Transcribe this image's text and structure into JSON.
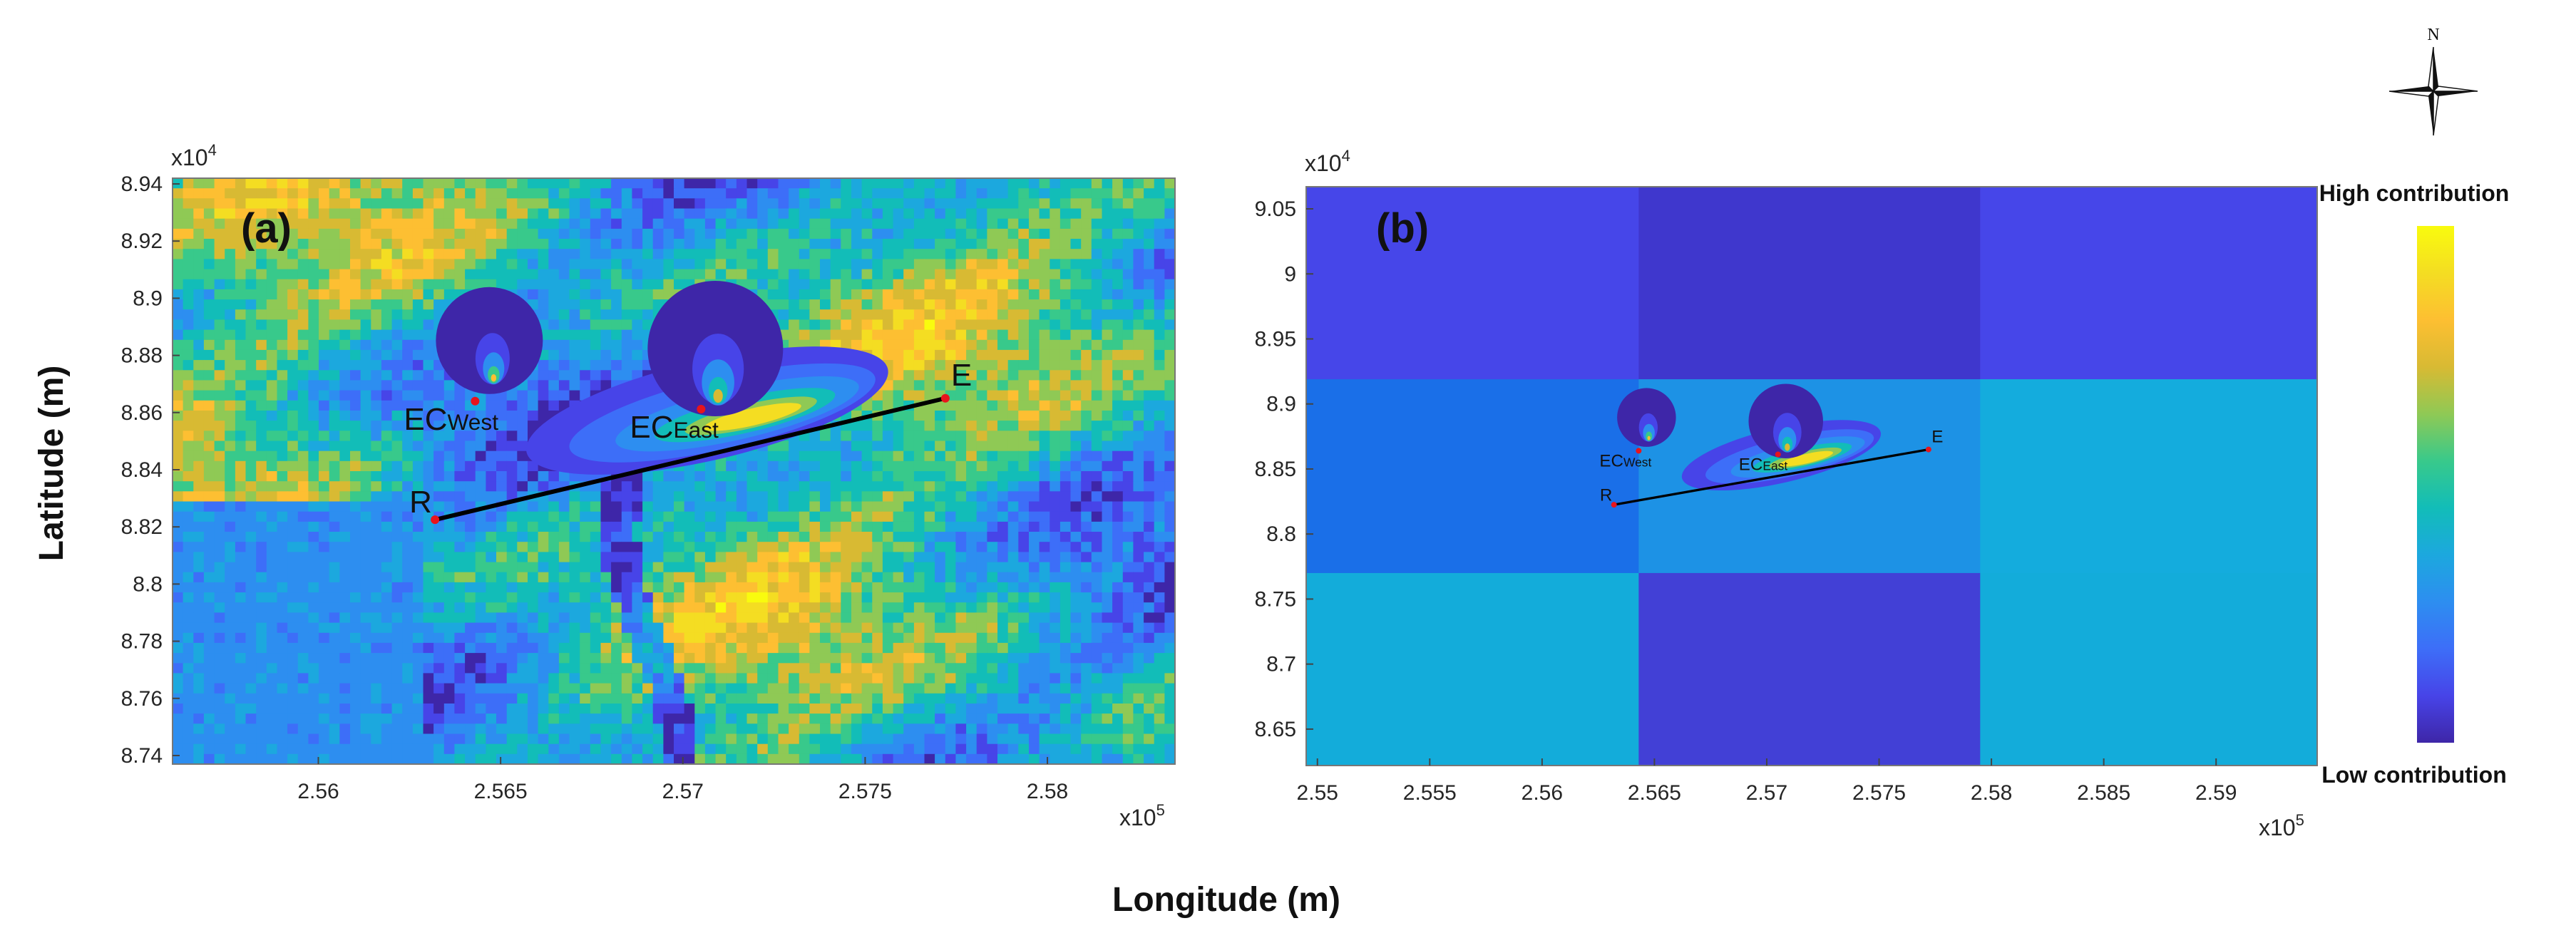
{
  "figure": {
    "xlabel": "Longitude (m)",
    "ylabel": "Latitude (m)",
    "x_exponent_base": "x10",
    "x_exponent_power": "5",
    "y_exponent_base": "x10",
    "y_exponent_power": "4"
  },
  "colorbar": {
    "high_label": "High contribution",
    "low_label": "Low contribution",
    "colors": [
      "#3e26a8",
      "#4744e8",
      "#3d6ef8",
      "#2d8ef0",
      "#1ca8de",
      "#12bdb8",
      "#38c98b",
      "#8fc955",
      "#d8ba33",
      "#fdbf32",
      "#f4dd22",
      "#f9fb0e"
    ]
  },
  "compass": {
    "north_label": "N"
  },
  "chart_data": [
    {
      "type": "heatmap",
      "panel_label": "(a)",
      "xlim": [
        255600,
        258350
      ],
      "ylim": [
        87370,
        89420
      ],
      "xticks": [
        256000,
        256500,
        257000,
        257500,
        258000
      ],
      "xtick_labels": [
        "2.56",
        "2.565",
        "2.57",
        "2.575",
        "2.58"
      ],
      "yticks": [
        87400,
        87600,
        87800,
        88000,
        88200,
        88400,
        88600,
        88800,
        89000,
        89200,
        89400
      ],
      "ytick_labels": [
        "8.74",
        "8.76",
        "8.78",
        "8.8",
        "8.82",
        "8.84",
        "8.86",
        "8.88",
        "8.9",
        "8.92",
        "8.94"
      ],
      "background": "fine-resolution heterogeneous land-cover contribution field",
      "points": [
        {
          "label": "R",
          "x": 256320,
          "y": 88225
        },
        {
          "label": "E",
          "x": 257720,
          "y": 88650
        },
        {
          "label_main": "EC",
          "label_sub": "West",
          "x": 256430,
          "y": 88640
        },
        {
          "label_main": "EC",
          "label_sub": "East",
          "x": 257050,
          "y": 88612
        }
      ],
      "path": {
        "from": "R",
        "to": "E"
      }
    },
    {
      "type": "heatmap",
      "panel_label": "(b)",
      "xlim": [
        254950,
        259450
      ],
      "ylim": [
        86220,
        90670
      ],
      "xticks": [
        255000,
        255500,
        256000,
        256500,
        257000,
        257500,
        258000,
        258500,
        259000
      ],
      "xtick_labels": [
        "2.55",
        "2.555",
        "2.56",
        "2.565",
        "2.57",
        "2.575",
        "2.58",
        "2.585",
        "2.59"
      ],
      "yticks": [
        86500,
        87000,
        87500,
        88000,
        88500,
        89000,
        89500,
        90000,
        90500
      ],
      "ytick_labels": [
        "8.65",
        "8.7",
        "8.75",
        "8.8",
        "8.85",
        "8.9",
        "8.95",
        "9",
        "9.05"
      ],
      "grid_x_edges": [
        254950,
        256430,
        257950,
        259450
      ],
      "grid_y_edges": [
        86220,
        87700,
        89190,
        90670
      ],
      "grid_cells_top_to_bottom": [
        [
          "#4646e9",
          "#3f37cd",
          "#4646e9"
        ],
        [
          "#1a6fe8",
          "#1d92e5",
          "#14acdd"
        ],
        [
          "#13acda",
          "#4240d6",
          "#13acda"
        ]
      ],
      "points": [
        {
          "label": "R",
          "x": 256320,
          "y": 88225
        },
        {
          "label": "E",
          "x": 257720,
          "y": 88650
        },
        {
          "label_main": "EC",
          "label_sub": "West",
          "x": 256430,
          "y": 88640
        },
        {
          "label_main": "EC",
          "label_sub": "East",
          "x": 257050,
          "y": 88612
        }
      ],
      "path": {
        "from": "R",
        "to": "E"
      }
    }
  ]
}
